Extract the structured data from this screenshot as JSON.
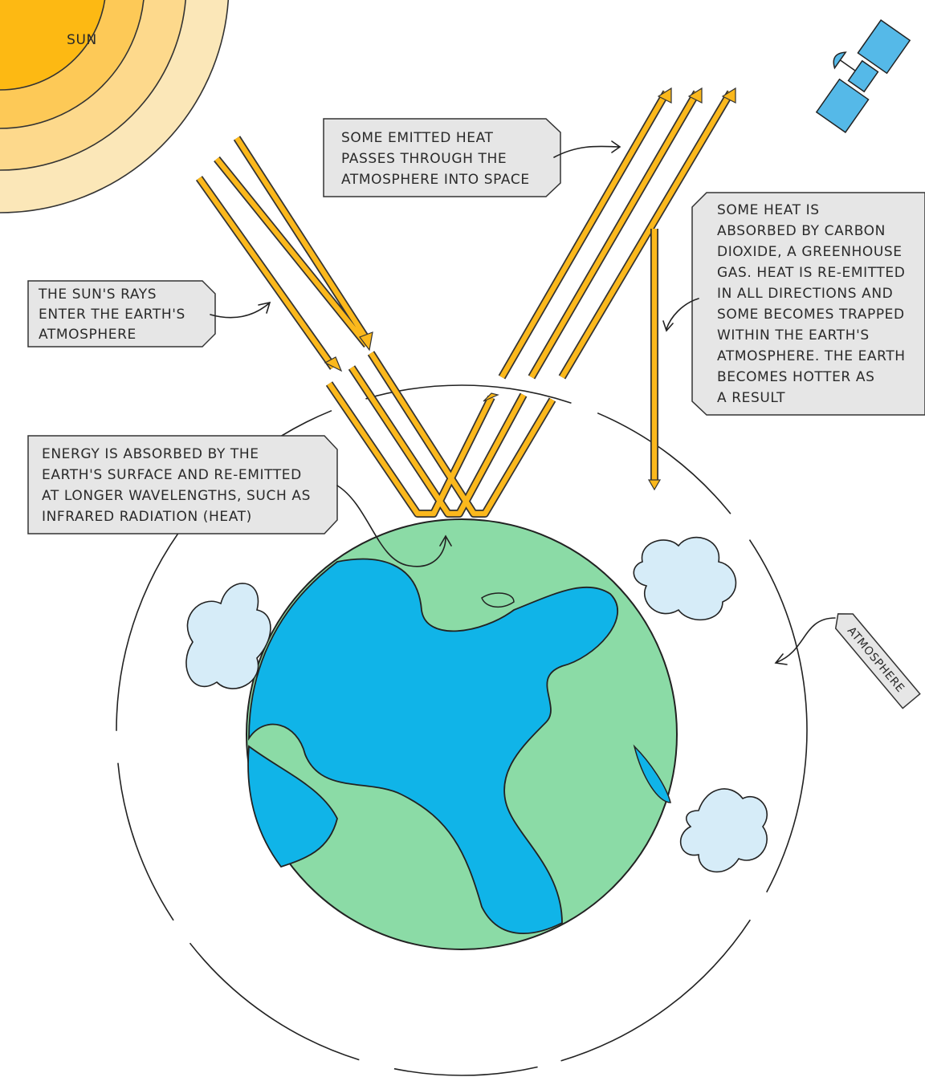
{
  "sun": {
    "label": "SUN"
  },
  "labels": [
    {
      "lines": [
        "SOME EMITTED HEAT",
        "PASSES THROUGH THE",
        "ATMOSPHERE INTO SPACE"
      ]
    },
    {
      "lines": [
        "SOME HEAT IS",
        "ABSORBED BY CARBON",
        "DIOXIDE, A GREENHOUSE",
        "GAS. HEAT IS RE-EMITTED",
        "IN ALL DIRECTIONS AND",
        "SOME BECOMES TRAPPED",
        "WITHIN THE EARTH'S",
        "ATMOSPHERE. THE EARTH",
        "BECOMES HOTTER AS",
        "A RESULT"
      ]
    },
    {
      "lines": [
        "THE SUN'S RAYS",
        "ENTER THE EARTH'S",
        "ATMOSPHERE"
      ]
    },
    {
      "lines": [
        "ENERGY IS ABSORBED BY THE",
        "EARTH'S SURFACE AND RE-EMITTED",
        "AT LONGER WAVELENGTHS, SUCH AS",
        "INFRARED RADIATION (HEAT)"
      ]
    }
  ],
  "atmosphere": {
    "label": "ATMOSPHERE"
  }
}
